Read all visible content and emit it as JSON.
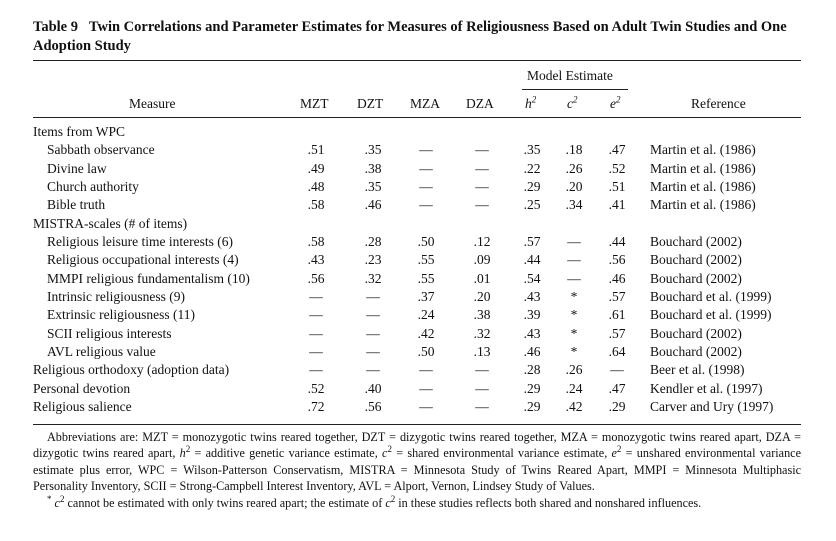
{
  "caption": {
    "label": "Table 9",
    "title": "Twin Correlations and Parameter Estimates for Measures of Religiousness Based on Adult Twin Studies and One Adoption Study"
  },
  "header": {
    "model_estimate": "Model Estimate",
    "columns": [
      "Measure",
      "MZT",
      "DZT",
      "MZA",
      "DZA",
      "h",
      "c",
      "e",
      "Reference"
    ],
    "sup": "2"
  },
  "rows": [
    {
      "measure": "Items from WPC",
      "group": true,
      "values": [
        "",
        "",
        "",
        "",
        "",
        "",
        ""
      ],
      "ref": ""
    },
    {
      "measure": "Sabbath observance",
      "values": [
        ".51",
        ".35",
        "—",
        "—",
        ".35",
        ".18",
        ".47"
      ],
      "ref": "Martin et al. (1986)"
    },
    {
      "measure": "Divine law",
      "values": [
        ".49",
        ".38",
        "—",
        "—",
        ".22",
        ".26",
        ".52"
      ],
      "ref": "Martin et al. (1986)"
    },
    {
      "measure": "Church authority",
      "values": [
        ".48",
        ".35",
        "—",
        "—",
        ".29",
        ".20",
        ".51"
      ],
      "ref": "Martin et al. (1986)"
    },
    {
      "measure": "Bible truth",
      "values": [
        ".58",
        ".46",
        "—",
        "—",
        ".25",
        ".34",
        ".41"
      ],
      "ref": "Martin et al. (1986)"
    },
    {
      "measure": "MISTRA-scales (# of items)",
      "group": true,
      "values": [
        "",
        "",
        "",
        "",
        "",
        "",
        ""
      ],
      "ref": ""
    },
    {
      "measure": "Religious leisure time interests (6)",
      "values": [
        ".58",
        ".28",
        ".50",
        ".12",
        ".57",
        "—",
        ".44"
      ],
      "ref": "Bouchard (2002)"
    },
    {
      "measure": "Religious occupational interests (4)",
      "values": [
        ".43",
        ".23",
        ".55",
        ".09",
        ".44",
        "—",
        ".56"
      ],
      "ref": "Bouchard (2002)"
    },
    {
      "measure": "MMPI religious fundamentalism (10)",
      "values": [
        ".56",
        ".32",
        ".55",
        ".01",
        ".54",
        "—",
        ".46"
      ],
      "ref": "Bouchard (2002)"
    },
    {
      "measure": "Intrinsic religiousness (9)",
      "values": [
        "—",
        "—",
        ".37",
        ".20",
        ".43",
        "*",
        ".57"
      ],
      "ref": "Bouchard et al. (1999)"
    },
    {
      "measure": "Extrinsic religiousness (11)",
      "values": [
        "—",
        "—",
        ".24",
        ".38",
        ".39",
        "*",
        ".61"
      ],
      "ref": "Bouchard et al. (1999)"
    },
    {
      "measure": "SCII religious interests",
      "values": [
        "—",
        "—",
        ".42",
        ".32",
        ".43",
        "*",
        ".57"
      ],
      "ref": "Bouchard (2002)"
    },
    {
      "measure": "AVL religious value",
      "values": [
        "—",
        "—",
        ".50",
        ".13",
        ".46",
        "*",
        ".64"
      ],
      "ref": "Bouchard (2002)"
    },
    {
      "measure": "Religious orthodoxy (adoption data)",
      "top": true,
      "values": [
        "—",
        "—",
        "—",
        "—",
        ".28",
        ".26",
        "—"
      ],
      "ref": "Beer et al. (1998)"
    },
    {
      "measure": "Personal devotion",
      "top": true,
      "values": [
        ".52",
        ".40",
        "—",
        "—",
        ".29",
        ".24",
        ".47"
      ],
      "ref": "Kendler et al. (1997)"
    },
    {
      "measure": "Religious salience",
      "top": true,
      "values": [
        ".72",
        ".56",
        "—",
        "—",
        ".29",
        ".42",
        ".29"
      ],
      "ref": "Carver and Ury (1997)"
    }
  ],
  "notes": {
    "abbrev": [
      {
        "t": "Abbreviations are: MZT = monozygotic twins reared together, DZT = dizygotic twins reared together, MZA = monozygotic twins reared apart, DZA = dizygotic twins reared apart, "
      },
      {
        "v": "h",
        "s": "2"
      },
      {
        "t": " = additive genetic variance estimate, "
      },
      {
        "v": "c",
        "s": "2"
      },
      {
        "t": " = shared environmental variance estimate, "
      },
      {
        "v": "e",
        "s": "2"
      },
      {
        "t": " = unshared environmental variance estimate plus error, WPC = Wilson-Patterson Conservatism, MISTRA = Minnesota Study of Twins Reared Apart, MMPI = Minnesota Multiphasic Personality Inventory, SCII = Strong-Campbell Interest Inventory, AVL = Alport, Vernon, Lindsey Study of Values."
      }
    ],
    "star": [
      {
        "s": "*"
      },
      {
        "t": " "
      },
      {
        "v": "c",
        "s": "2"
      },
      {
        "t": " cannot be estimated with only twins reared apart; the estimate of "
      },
      {
        "v": "c",
        "s": "2"
      },
      {
        "t": " in these studies reflects both shared and nonshared influences."
      }
    ]
  }
}
